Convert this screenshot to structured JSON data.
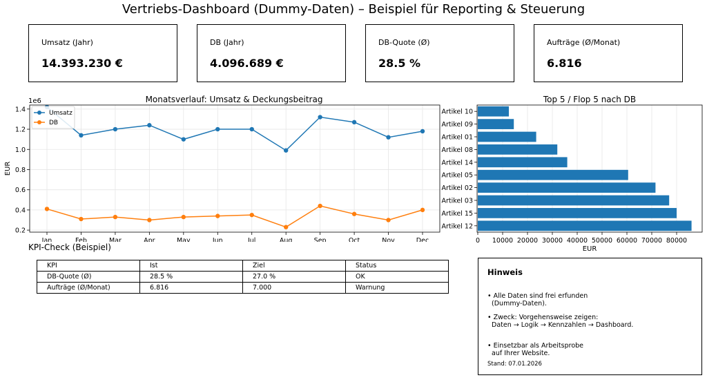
{
  "header": {
    "title": "Vertriebs-Dashboard (Dummy-Daten) – Beispiel für Reporting & Steuerung"
  },
  "kpis": [
    {
      "label": "Umsatz (Jahr)",
      "value": "14.393.230 €"
    },
    {
      "label": "DB (Jahr)",
      "value": "4.096.689 €"
    },
    {
      "label": "DB-Quote (Ø)",
      "value": "28.5 %"
    },
    {
      "label": "Aufträge (Ø/Monat)",
      "value": "6.816"
    }
  ],
  "chart_data": [
    {
      "type": "line",
      "title": "Monatsverlauf: Umsatz & Deckungsbeitrag",
      "ylabel": "EUR",
      "xlabel": "",
      "y_scale_label": "1e6",
      "categories": [
        "Jan",
        "Feb",
        "Mar",
        "Apr",
        "May",
        "Jun",
        "Jul",
        "Aug",
        "Sep",
        "Oct",
        "Nov",
        "Dec"
      ],
      "ylim": [
        0.18,
        1.44
      ],
      "yticks": [
        0.2,
        0.4,
        0.6,
        0.8,
        1.0,
        1.2,
        1.4
      ],
      "series": [
        {
          "name": "Umsatz",
          "color": "#1f77b4",
          "values": [
            1.42,
            1.14,
            1.2,
            1.24,
            1.1,
            1.2,
            1.2,
            0.99,
            1.32,
            1.27,
            1.12,
            1.18
          ]
        },
        {
          "name": "DB",
          "color": "#ff7f0e",
          "values": [
            0.41,
            0.31,
            0.33,
            0.3,
            0.33,
            0.34,
            0.35,
            0.23,
            0.44,
            0.36,
            0.3,
            0.4
          ]
        }
      ],
      "grid": true,
      "legend": "top-left"
    },
    {
      "type": "bar",
      "orientation": "horizontal",
      "title": "Top 5 / Flop 5 nach DB",
      "xlabel": "EUR",
      "ylabel": "",
      "color": "#1f77b4",
      "categories": [
        "Artikel 10",
        "Artikel 09",
        "Artikel 01",
        "Artikel 08",
        "Artikel 14",
        "Artikel 05",
        "Artikel 02",
        "Artikel 03",
        "Artikel 15",
        "Artikel 12"
      ],
      "values": [
        12500,
        14500,
        23500,
        32000,
        36000,
        60500,
        71500,
        77000,
        80000,
        86000
      ],
      "xlim": [
        0,
        90000
      ],
      "xticks": [
        0,
        10000,
        20000,
        30000,
        40000,
        50000,
        60000,
        70000,
        80000
      ],
      "grid": true
    }
  ],
  "kpi_check": {
    "title": "KPI-Check (Beispiel)",
    "headers": [
      "KPI",
      "Ist",
      "Ziel",
      "Status"
    ],
    "rows": [
      [
        "DB-Quote (Ø)",
        "28.5 %",
        "27.0 %",
        "OK"
      ],
      [
        "Aufträge (Ø/Monat)",
        "6.816",
        "7.000",
        "Warnung"
      ]
    ]
  },
  "hint": {
    "title": "Hinweis",
    "items": [
      [
        "• Alle Daten sind frei erfunden",
        "  (Dummy-Daten)."
      ],
      [
        "• Zweck: Vorgehensweise zeigen:",
        "  Daten → Logik → Kennzahlen → Dashboard."
      ],
      [
        "• Einsetzbar als Arbeitsprobe",
        "  auf Ihrer Website."
      ]
    ],
    "stand": "Stand: 07.01.2026"
  }
}
